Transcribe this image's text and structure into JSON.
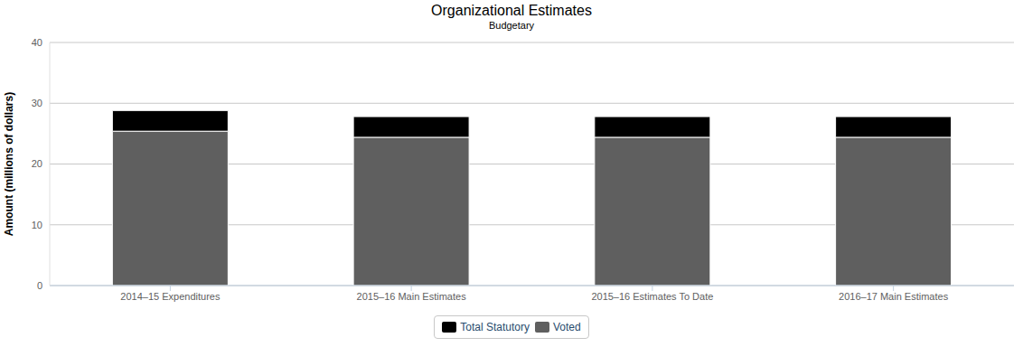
{
  "chart_data": {
    "type": "bar",
    "title": "Organizational Estimates",
    "subtitle": "Budgetary",
    "y_label": "Amount (millions of dollars)",
    "categories": [
      "2014–15 Expenditures",
      "2015–16 Main Estimates",
      "2015–16 Estimates To Date",
      "2016–17 Main Estimates"
    ],
    "series": [
      {
        "name": "Total Statutory",
        "color": "#000000",
        "values": [
          3.4,
          3.4,
          3.4,
          3.4
        ]
      },
      {
        "name": "Voted",
        "color": "#5f5f5f",
        "values": [
          25.4,
          24.4,
          24.4,
          24.4
        ]
      }
    ],
    "ylim": [
      0,
      40
    ],
    "yticks": [
      0,
      10,
      20,
      30,
      40
    ],
    "grid": true,
    "stacked": true,
    "legend": "bottom"
  }
}
